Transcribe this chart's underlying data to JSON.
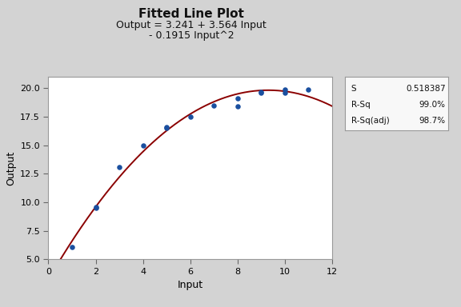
{
  "title": "Fitted Line Plot",
  "subtitle_line1": "Output = 3.241 + 3.564 Input",
  "subtitle_line2": "- 0.1915 Input^2",
  "xlabel": "Input",
  "ylabel": "Output",
  "bg_color": "#d3d3d3",
  "plot_bg_color": "#ffffff",
  "scatter_x": [
    1,
    2,
    2,
    3,
    4,
    5,
    5,
    6,
    7,
    8,
    8,
    9,
    9,
    10,
    10,
    11
  ],
  "scatter_y": [
    6.1,
    9.6,
    9.5,
    13.1,
    15.0,
    16.5,
    16.6,
    17.5,
    18.5,
    18.4,
    19.1,
    19.7,
    19.6,
    19.9,
    19.6,
    19.9
  ],
  "scatter_color": "#1a4f9f",
  "line_color": "#8b0000",
  "coeff_a": 3.241,
  "coeff_b": 3.564,
  "coeff_c": -0.1915,
  "xlim": [
    0,
    12
  ],
  "ylim": [
    5.0,
    21.0
  ],
  "xticks": [
    0,
    2,
    4,
    6,
    8,
    10,
    12
  ],
  "yticks": [
    5.0,
    7.5,
    10.0,
    12.5,
    15.0,
    17.5,
    20.0
  ],
  "stats_keys": [
    "S",
    "R-Sq",
    "R-Sq(adj)"
  ],
  "stats_vals": [
    "0.518387",
    "99.0%",
    "98.7%"
  ],
  "title_fontsize": 11,
  "subtitle_fontsize": 9,
  "axis_label_fontsize": 9,
  "tick_fontsize": 8,
  "stats_fontsize": 7.5
}
